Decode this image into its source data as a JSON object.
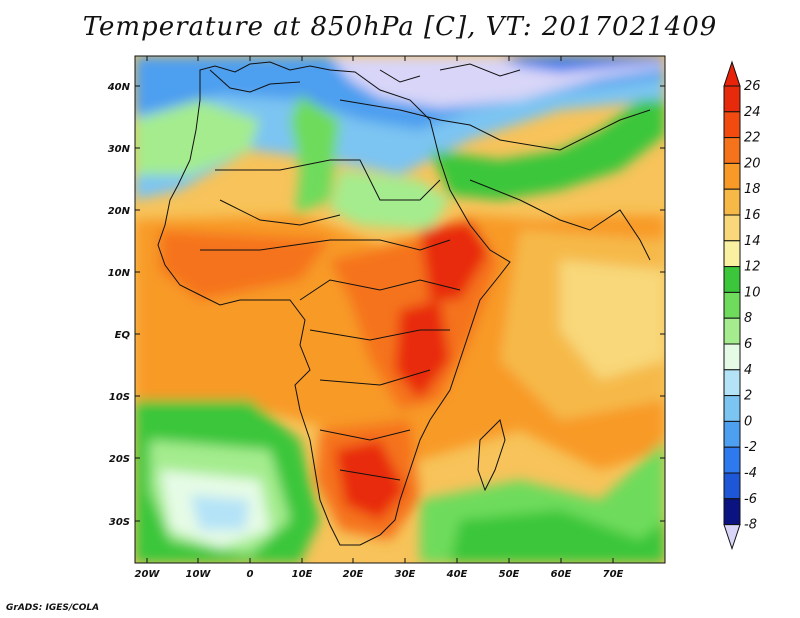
{
  "title": "Temperature at 850hPa [C], VT: 2017021409",
  "credit": "GrADS: IGES/COLA",
  "lat_labels": [
    "40N",
    "30N",
    "20N",
    "10N",
    "EQ",
    "10S",
    "20S",
    "30S"
  ],
  "lon_labels": [
    "20W",
    "10W",
    "0",
    "10E",
    "20E",
    "30E",
    "40E",
    "50E",
    "60E",
    "70E"
  ],
  "colorbar": {
    "labels": [
      "26",
      "24",
      "22",
      "20",
      "18",
      "16",
      "14",
      "12",
      "10",
      "8",
      "6",
      "4",
      "2",
      "0",
      "-2",
      "-4",
      "-6",
      "-8"
    ],
    "colors": [
      "#e82a0c",
      "#f24b0f",
      "#f5731a",
      "#f89a28",
      "#f6b948",
      "#f8d87a",
      "#f9f0a2",
      "#3bc63b",
      "#6edb5c",
      "#a4ec8e",
      "#e6fbe6",
      "#b4e3f7",
      "#7cc4f2",
      "#4d9ff0",
      "#2f79ee",
      "#1e56d8",
      "#1535b0",
      "#0a1380"
    ],
    "over_color": "#e8230a",
    "under_color": "#d8d5f8"
  }
}
